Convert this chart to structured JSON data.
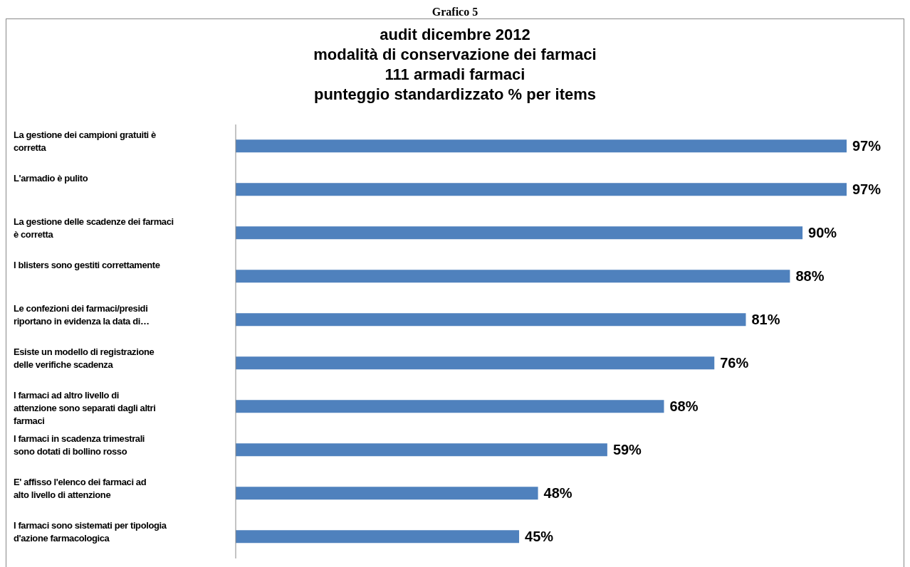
{
  "chart_data": {
    "type": "bar",
    "orientation": "horizontal",
    "title": "audit dicembre 2012\nmodalità di conservazione  dei farmaci\n111 armadi farmaci\npunteggio standardizzato  % per items",
    "annotations": [
      "Grafico 5"
    ],
    "categories": [
      "La gestione dei campioni gratuiti  è corretta",
      "L'armadio è pulito",
      "La gestione delle scadenze dei farmaci è corretta",
      "I  blisters sono gestiti correttamente",
      "Le confezioni dei farmaci/presidi riportano in evidenza la data di…",
      "Esiste un modello di registrazione delle verifiche scadenza",
      "I farmaci  ad altro livello di attenzione sono separati dagli altri farmaci",
      "I farmaci  in scadenza trimestrali sono dotati di bollino rosso",
      "E' affisso l'elenco dei farmaci ad alto livello di attenzione",
      "I farmaci sono sistemati per tipologia d'azione farmacologica"
    ],
    "values": [
      97,
      97,
      90,
      88,
      81,
      76,
      68,
      59,
      48,
      45
    ],
    "value_labels": [
      "97%",
      "97%",
      "90%",
      "88%",
      "81%",
      "76%",
      "68%",
      "59%",
      "48%",
      "45%"
    ],
    "color": "#4f81bd"
  }
}
